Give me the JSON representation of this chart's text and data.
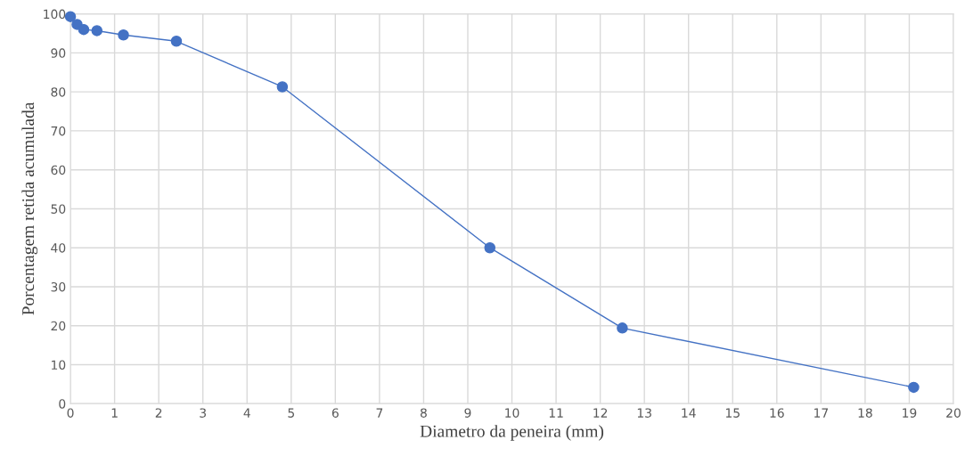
{
  "chart_data": {
    "type": "line",
    "xlabel": "Diametro da peneira (mm)",
    "ylabel": "Porcentagem retida acumulada",
    "x": [
      0.0,
      0.15,
      0.3,
      0.6,
      1.2,
      2.4,
      4.8,
      9.5,
      12.5,
      19.1
    ],
    "series": [
      {
        "color": "#4472c4",
        "values": [
          99.3,
          97.3,
          96.0,
          95.7,
          94.6,
          93.0,
          81.3,
          40.0,
          19.4,
          4.2
        ]
      }
    ],
    "xlim": [
      0,
      20
    ],
    "xticks": [
      0,
      1,
      2,
      3,
      4,
      5,
      6,
      7,
      8,
      9,
      10,
      11,
      12,
      13,
      14,
      15,
      16,
      17,
      18,
      19,
      20
    ],
    "ylim": [
      0,
      100
    ],
    "yticks": [
      0,
      10,
      20,
      30,
      40,
      50,
      60,
      70,
      80,
      90,
      100
    ],
    "grid": true,
    "marker": "circle",
    "line_style": "solid"
  }
}
